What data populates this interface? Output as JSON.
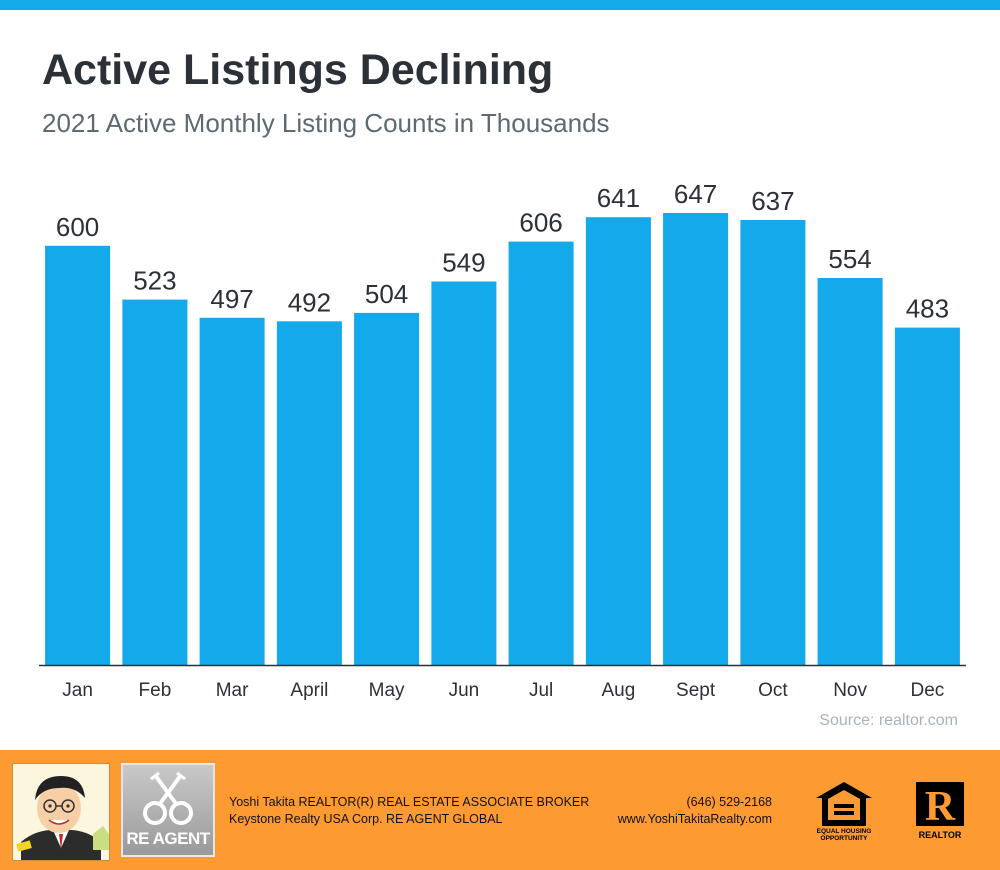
{
  "header": {
    "title": "Active Listings Declining",
    "subtitle": "2021 Active Monthly Listing Counts in Thousands"
  },
  "chart_data": {
    "type": "bar",
    "title": "Active Listings Declining",
    "subtitle": "2021 Active Monthly Listing Counts in Thousands",
    "categories": [
      "Jan",
      "Feb",
      "Mar",
      "April",
      "May",
      "Jun",
      "Jul",
      "Aug",
      "Sept",
      "Oct",
      "Nov",
      "Dec"
    ],
    "values": [
      600,
      523,
      497,
      492,
      504,
      549,
      606,
      641,
      647,
      637,
      554,
      483
    ],
    "xlabel": "",
    "ylabel": "",
    "ylim": [
      0,
      647
    ],
    "grid": false,
    "legend": "none",
    "bar_color": "#13a9ea"
  },
  "source": "Source: realtor.com",
  "footer": {
    "agent_name_line": "Yoshi Takita REALTOR(R) REAL ESTATE ASSOCIATE BROKER",
    "company_line": "Keystone Realty USA Corp.  RE AGENT GLOBAL",
    "phone": "(646) 529-2168",
    "website": "www.YoshiTakitaRealty.com",
    "re_agent_logo_text": "RE AGENT",
    "equal_housing_text": "EQUAL HOUSING OPPORTUNITY",
    "realtor_text": "REALTOR",
    "realtor_letter": "R",
    "icons": [
      "agent-caricature",
      "re-agent-keys-logo",
      "equal-housing-icon",
      "realtor-logo-icon"
    ]
  },
  "colors": {
    "accent": "#13a9ea",
    "footer": "#fd9b32",
    "title": "#2b3137",
    "subtitle": "#5e6a72",
    "source": "#a8b3bb"
  }
}
